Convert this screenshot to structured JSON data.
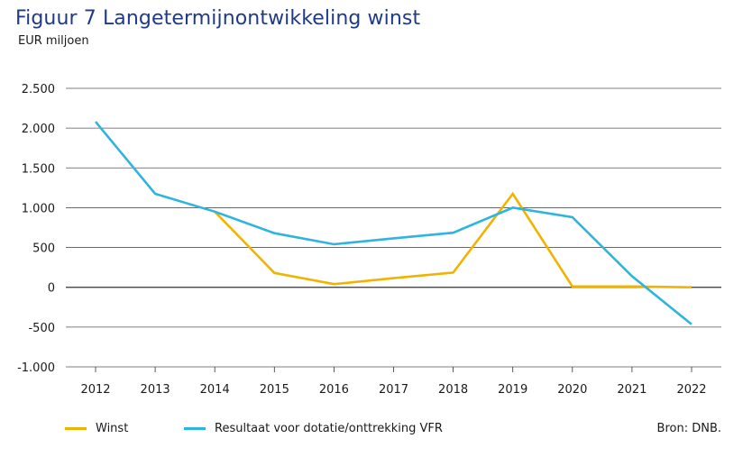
{
  "header": {
    "title": "Figuur 7  Langetermijnontwikkeling winst",
    "unit": "EUR miljoen"
  },
  "footer": {
    "source": "Bron: DNB."
  },
  "colors": {
    "winst": "#f0b400",
    "resultaat": "#2fb4e0",
    "grid": "#555555",
    "axis": "#333333"
  },
  "chart_data": {
    "type": "line",
    "title": "Figuur 7  Langetermijnontwikkeling winst",
    "ylabel": "EUR miljoen",
    "xlabel": "",
    "ylim": [
      -1000,
      2500
    ],
    "yticks": [
      2500,
      2000,
      1500,
      1000,
      500,
      0,
      -500,
      -1000
    ],
    "ytick_labels": [
      "2.500",
      "2.000",
      "1.500",
      "1.000",
      "500",
      "0",
      "-500",
      "-1.000"
    ],
    "categories": [
      "2012",
      "2013",
      "2014",
      "2015",
      "2016",
      "2017",
      "2018",
      "2019",
      "2020",
      "2021",
      "2022"
    ],
    "series": [
      {
        "name": "Winst",
        "key": "winst",
        "values": [
          null,
          null,
          950,
          180,
          40,
          115,
          185,
          1175,
          10,
          10,
          0
        ]
      },
      {
        "name": "Resultaat voor dotatie/onttrekking VFR",
        "key": "resultaat",
        "values": [
          2080,
          1175,
          950,
          680,
          540,
          615,
          685,
          1000,
          880,
          140,
          -465
        ]
      }
    ],
    "legend_position": "bottom-left",
    "grid": true
  }
}
